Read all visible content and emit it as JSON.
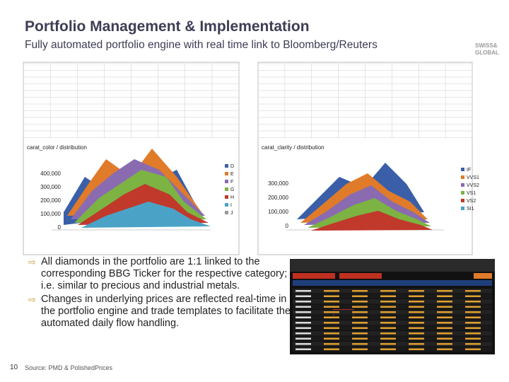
{
  "header": {
    "title": "Portfolio Management & Implementation",
    "subtitle": "Fully automated portfolio engine with real time link to Bloomberg/Reuters",
    "logo": [
      "SWISS&",
      "GLOBAL"
    ]
  },
  "panels": [
    {
      "title": "carat_color / distribution",
      "y_labels": [
        "400,000",
        "300,000",
        "200,000",
        "100,000",
        "0"
      ],
      "legend": [
        "D",
        "E",
        "F",
        "G",
        "H",
        "I",
        "J"
      ]
    },
    {
      "title": "carat_clarity / distribution",
      "y_labels": [
        "300,000",
        "200,000",
        "100,000",
        "0"
      ],
      "legend": [
        "IF",
        "VVS1",
        "VVS2",
        "VS1",
        "VS2",
        "SI1"
      ]
    }
  ],
  "bullets": [
    "All diamonds in the portfolio are 1:1 linked to the corresponding BBG Ticker for the respective category; i.e. similar to precious and industrial metals.",
    "Changes in underlying prices are reflected real-time in the portfolio engine and trade templates to facilitate the automated daily flow handling."
  ],
  "footer": {
    "page": "10",
    "source": "Source: PMD & PolishedPrices"
  }
}
